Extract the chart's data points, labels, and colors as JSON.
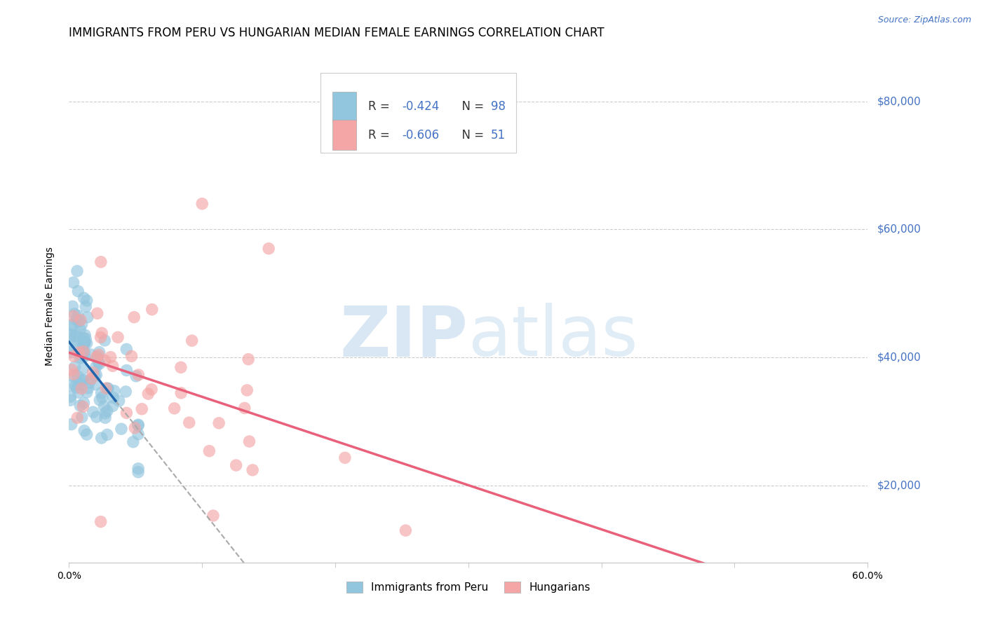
{
  "title": "IMMIGRANTS FROM PERU VS HUNGARIAN MEDIAN FEMALE EARNINGS CORRELATION CHART",
  "source": "Source: ZipAtlas.com",
  "ylabel": "Median Female Earnings",
  "yticks": [
    20000,
    40000,
    60000,
    80000
  ],
  "ytick_labels": [
    "$20,000",
    "$40,000",
    "$60,000",
    "$80,000"
  ],
  "xlim": [
    0.0,
    0.6
  ],
  "ylim": [
    8000,
    88000
  ],
  "blue_color": "#92C5DE",
  "pink_color": "#F4A6A6",
  "blue_line_color": "#2166AC",
  "pink_line_color": "#E8607A",
  "dashed_line_color": "#AAAAAA",
  "background_color": "#ffffff",
  "grid_color": "#CCCCCC",
  "ytick_color": "#4472C4",
  "title_fontsize": 12,
  "axis_label_fontsize": 10,
  "tick_fontsize": 10,
  "legend_fontsize": 12,
  "source_fontsize": 9
}
